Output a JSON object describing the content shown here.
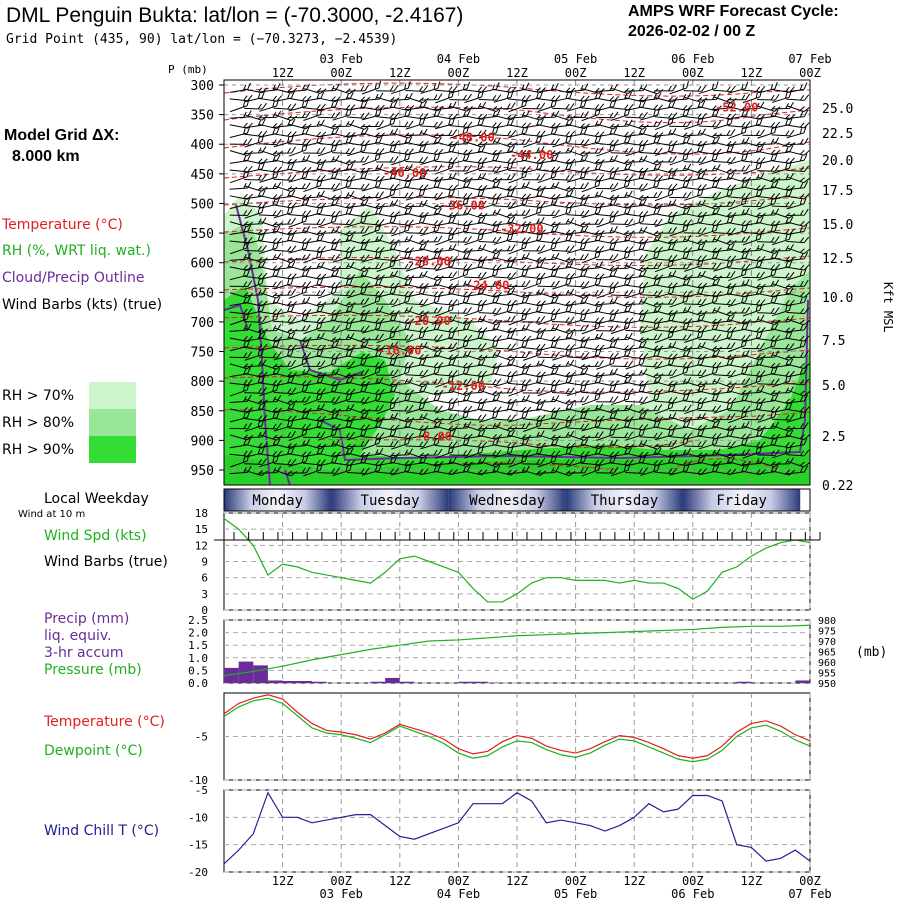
{
  "header": {
    "title": "DML Penguin Bukta:  lat/lon = (-70.3000, -2.4167)",
    "subtitle": "Grid Point (435, 90) lat/lon = (−70.3273, −2.4539)",
    "cycle_line1": "AMPS WRF Forecast Cycle:",
    "cycle_line2": "2026-02-02 / 00  Z"
  },
  "left_panel": {
    "model_grid_label": "Model Grid ΔX:",
    "model_grid_value": "8.000 km",
    "legend": [
      {
        "label": "Temperature (°C)",
        "color": "#e02020"
      },
      {
        "label": "RH (%, WRT liq. wat.)",
        "color": "#20b020"
      },
      {
        "label": "Cloud/Precip Outline",
        "color": "#6a2c9a"
      },
      {
        "label": "Wind Barbs (kts) (true)",
        "color": "#000000"
      }
    ],
    "rh_legend": [
      {
        "label": "RH > 70%",
        "color": "#ccf5cc"
      },
      {
        "label": "RH > 80%",
        "color": "#99e699"
      },
      {
        "label": "RH > 90%",
        "color": "#33dd33"
      }
    ]
  },
  "time_axis": {
    "top_hours": [
      "12Z",
      "00Z",
      "12Z",
      "00Z",
      "12Z",
      "00Z",
      "12Z",
      "00Z",
      "12Z",
      "00Z"
    ],
    "top_dates": [
      {
        "hour_index": 1,
        "label": "03 Feb"
      },
      {
        "hour_index": 3,
        "label": "04 Feb"
      },
      {
        "hour_index": 5,
        "label": "05 Feb"
      },
      {
        "hour_index": 7,
        "label": "06 Feb"
      },
      {
        "hour_index": 9,
        "label": "07 Feb"
      }
    ],
    "start_hour": 0,
    "end_hour": 120,
    "tick_hours": [
      12,
      24,
      36,
      48,
      60,
      72,
      84,
      96,
      108,
      120
    ]
  },
  "weekday_bar": {
    "title": "Local Weekday",
    "note": "Wind at 10 m",
    "days": [
      "Monday",
      "Tuesday",
      "Wednesday",
      "Thursday",
      "Friday"
    ],
    "day_start_hours": [
      0,
      22,
      46,
      70,
      94,
      118
    ]
  },
  "chart_data": [
    {
      "type": "line",
      "name": "cross_section",
      "ylabel": "P (mb)",
      "right_label": "Kft MSL",
      "y_ticks_mb": [
        300,
        350,
        400,
        450,
        500,
        550,
        600,
        650,
        700,
        750,
        800,
        850,
        900,
        950
      ],
      "right_ticks_kft": [
        "25.0",
        "22.5",
        "20.0",
        "17.5",
        "15.0",
        "12.5",
        "10.0",
        "7.5",
        "5.0",
        "2.5",
        "0.22"
      ],
      "temperature_labels": [
        {
          "label": "-52.00",
          "hour": 105,
          "mb": 345
        },
        {
          "label": "-48.00",
          "hour": 51,
          "mb": 395
        },
        {
          "label": "-44.00",
          "hour": 63,
          "mb": 425
        },
        {
          "label": "-40.00",
          "hour": 37,
          "mb": 455
        },
        {
          "label": "-36.00",
          "hour": 49,
          "mb": 510
        },
        {
          "label": "-32.00",
          "hour": 61,
          "mb": 550
        },
        {
          "label": "-28.00",
          "hour": 42,
          "mb": 605
        },
        {
          "label": "-24.00",
          "hour": 54,
          "mb": 645
        },
        {
          "label": "-20.00",
          "hour": 42,
          "mb": 705
        },
        {
          "label": "-16.00",
          "hour": 36,
          "mb": 755
        },
        {
          "label": "-12.00",
          "hour": 49,
          "mb": 815
        },
        {
          "label": "-8.00",
          "hour": 43,
          "mb": 900
        }
      ]
    },
    {
      "type": "line",
      "name": "wind_speed",
      "ylabel": "Wind Spd (kts)",
      "ylim": [
        0,
        18
      ],
      "y_ticks": [
        0,
        3,
        6,
        9,
        12,
        15,
        18
      ],
      "x_hours": [
        0,
        3,
        6,
        9,
        12,
        15,
        18,
        21,
        24,
        27,
        30,
        33,
        36,
        39,
        42,
        45,
        48,
        51,
        54,
        57,
        60,
        63,
        66,
        69,
        72,
        75,
        78,
        81,
        84,
        87,
        90,
        93,
        96,
        99,
        102,
        105,
        108,
        111,
        114,
        117,
        120
      ],
      "values": [
        17,
        15,
        12,
        6.5,
        8.5,
        8,
        7,
        6.5,
        6,
        5.5,
        5,
        7,
        9.5,
        10,
        9,
        8,
        7,
        4,
        1.5,
        1.5,
        3,
        5,
        6,
        6,
        5.5,
        5.5,
        5.5,
        5,
        5.5,
        5,
        5,
        4,
        2,
        3.5,
        7,
        8,
        10,
        11.5,
        12.5,
        13,
        12.5
      ]
    },
    {
      "type": "bar",
      "name": "precip_pressure",
      "ylabel_left": "Precip (mm)",
      "ylim_left": [
        0,
        2.5
      ],
      "y_ticks_left": [
        "0.0",
        "0.5",
        "1.0",
        "1.5",
        "2.0",
        "2.5"
      ],
      "ylim_right": [
        950,
        980
      ],
      "y_ticks_right": [
        950,
        955,
        960,
        965,
        970,
        975,
        980
      ],
      "right_unit": "(mb)",
      "precip_hours": [
        0,
        3,
        6,
        9,
        12,
        15,
        18,
        21,
        24,
        27,
        30,
        33,
        36,
        39,
        42,
        45,
        48,
        51,
        54,
        57,
        60,
        63,
        66,
        69,
        72,
        75,
        78,
        81,
        84,
        87,
        90,
        93,
        96,
        99,
        102,
        105,
        108,
        111,
        114,
        117
      ],
      "precip_values": [
        0.6,
        0.85,
        0.7,
        0.1,
        0.08,
        0.08,
        0.05,
        0,
        0,
        0,
        0.05,
        0.2,
        0.05,
        0,
        0,
        0,
        0.05,
        0.05,
        0.02,
        0,
        0,
        0,
        0,
        0,
        0,
        0,
        0,
        0,
        0,
        0,
        0,
        0,
        0,
        0,
        0,
        0.05,
        0,
        0,
        0,
        0.1
      ],
      "pressure_hours": [
        0,
        6,
        12,
        18,
        24,
        30,
        36,
        42,
        48,
        54,
        60,
        66,
        72,
        78,
        84,
        90,
        96,
        102,
        108,
        114,
        120
      ],
      "pressure_values": [
        953.5,
        955.5,
        958,
        961,
        963.5,
        966,
        968,
        970,
        970.5,
        971.5,
        972.5,
        973,
        973.5,
        974,
        974.5,
        975,
        975.5,
        976.5,
        977,
        977,
        977.5
      ]
    },
    {
      "type": "line",
      "name": "temperature_dewpoint",
      "ylim": [
        -10,
        0
      ],
      "y_ticks": [
        -5,
        -10
      ],
      "x_hours": [
        0,
        3,
        6,
        9,
        12,
        15,
        18,
        21,
        24,
        27,
        30,
        33,
        36,
        39,
        42,
        45,
        48,
        51,
        54,
        57,
        60,
        63,
        66,
        69,
        72,
        75,
        78,
        81,
        84,
        87,
        90,
        93,
        96,
        99,
        102,
        105,
        108,
        111,
        114,
        117,
        120
      ],
      "series": [
        {
          "name": "Temperature (°C)",
          "color": "#e02020",
          "values": [
            -2.4,
            -1.2,
            -0.6,
            -0.2,
            -0.7,
            -2.2,
            -3.5,
            -4.3,
            -4.5,
            -4.8,
            -5.3,
            -4.6,
            -3.6,
            -4.1,
            -4.6,
            -5.3,
            -6.4,
            -7.0,
            -6.7,
            -5.6,
            -4.9,
            -5.2,
            -6.1,
            -6.6,
            -6.9,
            -6.4,
            -5.6,
            -4.9,
            -5.1,
            -5.7,
            -6.4,
            -7.2,
            -7.5,
            -7.2,
            -6.1,
            -4.5,
            -3.5,
            -3.2,
            -3.8,
            -4.8,
            -5.5
          ]
        },
        {
          "name": "Dewpoint (°C)",
          "color": "#20b020",
          "values": [
            -2.7,
            -1.6,
            -0.9,
            -0.6,
            -1.2,
            -2.6,
            -4.0,
            -4.6,
            -4.8,
            -5.2,
            -5.7,
            -4.8,
            -3.8,
            -4.4,
            -5.0,
            -5.8,
            -6.9,
            -7.5,
            -7.2,
            -6.2,
            -5.5,
            -5.7,
            -6.5,
            -7.1,
            -7.4,
            -6.9,
            -6.0,
            -5.3,
            -5.5,
            -6.2,
            -6.9,
            -7.6,
            -7.9,
            -7.6,
            -6.6,
            -5.0,
            -4.0,
            -3.7,
            -4.4,
            -5.4,
            -6.1
          ]
        }
      ]
    },
    {
      "type": "line",
      "name": "wind_chill",
      "ylim": [
        -20,
        -5
      ],
      "y_ticks": [
        -5,
        -10,
        -15,
        -20
      ],
      "x_hours": [
        0,
        3,
        6,
        9,
        12,
        15,
        18,
        21,
        24,
        27,
        30,
        33,
        36,
        39,
        42,
        45,
        48,
        51,
        54,
        57,
        60,
        63,
        66,
        69,
        72,
        75,
        78,
        81,
        84,
        87,
        90,
        93,
        96,
        99,
        102,
        105,
        108,
        111,
        114,
        117,
        120
      ],
      "series": [
        {
          "name": "Wind Chill T (°C)",
          "color": "#202090",
          "values": [
            -18.5,
            -16,
            -13,
            -5.5,
            -10,
            -10,
            -11,
            -10.5,
            -10,
            -9.5,
            -9.5,
            -11.5,
            -13.5,
            -14,
            -13,
            -12,
            -11,
            -7.5,
            -7.5,
            -7.5,
            -5.5,
            -7,
            -11,
            -10.5,
            -11,
            -11.5,
            -12.5,
            -11.5,
            -10,
            -7.5,
            -9,
            -8.5,
            -6,
            -6,
            -7,
            -15,
            -15.5,
            -18,
            -17.5,
            -16,
            -18
          ]
        }
      ]
    }
  ],
  "panel_labels": {
    "wind_spd": "Wind Spd (kts)",
    "wind_barbs": "Wind Barbs (true)",
    "precip_1": "Precip (mm)",
    "precip_2": "liq. equiv.",
    "precip_3": "3-hr accum",
    "pressure": "Pressure (mb)",
    "temperature": "Temperature (°C)",
    "dewpoint": "Dewpoint (°C)",
    "wind_chill": "Wind Chill T (°C)"
  },
  "colors": {
    "temperature": "#e02020",
    "rh_line": "#20b020",
    "cloud_outline": "#6a2c9a",
    "precip": "#6a2c9a",
    "wind_chill": "#202090",
    "weekday_bar": "#3a4a8a"
  }
}
